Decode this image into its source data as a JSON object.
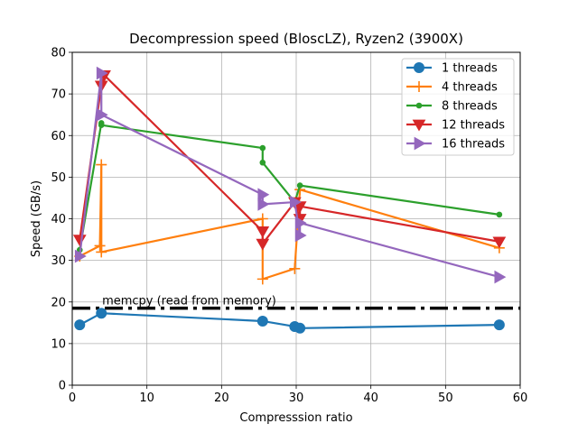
{
  "chart_data": {
    "type": "line",
    "title": "Decompression speed (BloscLZ), Ryzen2 (3900X)",
    "xlabel": "Compresssion ratio",
    "ylabel": "Speed (GB/s)",
    "xlim": [
      0,
      60
    ],
    "ylim": [
      0,
      80
    ],
    "xticks": [
      0,
      10,
      20,
      30,
      40,
      50,
      60
    ],
    "yticks": [
      0,
      10,
      20,
      30,
      40,
      50,
      60,
      70,
      80
    ],
    "grid": true,
    "legend_position": "top-right",
    "series": [
      {
        "name": "1 threads",
        "color": "#1f77b4",
        "marker": "circle",
        "x": [
          1.0,
          3.9,
          25.5,
          29.8,
          30.5,
          57.2
        ],
        "y": [
          14.5,
          17.3,
          15.4,
          14.1,
          13.7,
          14.5
        ]
      },
      {
        "name": "4 threads",
        "color": "#ff7f0e",
        "marker": "plus",
        "x": [
          1.0,
          3.7,
          3.9,
          3.9,
          25.5,
          25.5,
          29.8,
          30.5,
          57.2
        ],
        "y": [
          31.0,
          33.5,
          53.0,
          32.0,
          40.0,
          25.5,
          28.0,
          47.0,
          33.0
        ]
      },
      {
        "name": "8 threads",
        "color": "#2ca02c",
        "marker": "dot",
        "x": [
          1.0,
          3.9,
          3.9,
          25.5,
          25.5,
          29.8,
          30.5,
          57.2
        ],
        "y": [
          32.5,
          63.0,
          62.5,
          57.0,
          53.5,
          44.0,
          48.0,
          41.0
        ]
      },
      {
        "name": "12 threads",
        "color": "#d62728",
        "marker": "triangle-down",
        "x": [
          1.0,
          3.9,
          4.3,
          25.5,
          25.5,
          29.8,
          30.5,
          30.5,
          57.2
        ],
        "y": [
          35.0,
          72.0,
          74.5,
          37.0,
          34.0,
          44.0,
          40.0,
          43.0,
          34.5
        ]
      },
      {
        "name": "16 threads",
        "color": "#9467bd",
        "marker": "triangle-right",
        "x": [
          1.0,
          3.9,
          3.9,
          25.5,
          25.5,
          29.8,
          30.5,
          30.5,
          57.2
        ],
        "y": [
          31.0,
          75.0,
          65.0,
          45.8,
          43.5,
          44.0,
          36.0,
          39.0,
          26.0
        ]
      }
    ],
    "reference_line": {
      "label": "memcpy (read from memory)",
      "y": 18.5,
      "style": "dash-dot",
      "color": "#000000"
    }
  }
}
